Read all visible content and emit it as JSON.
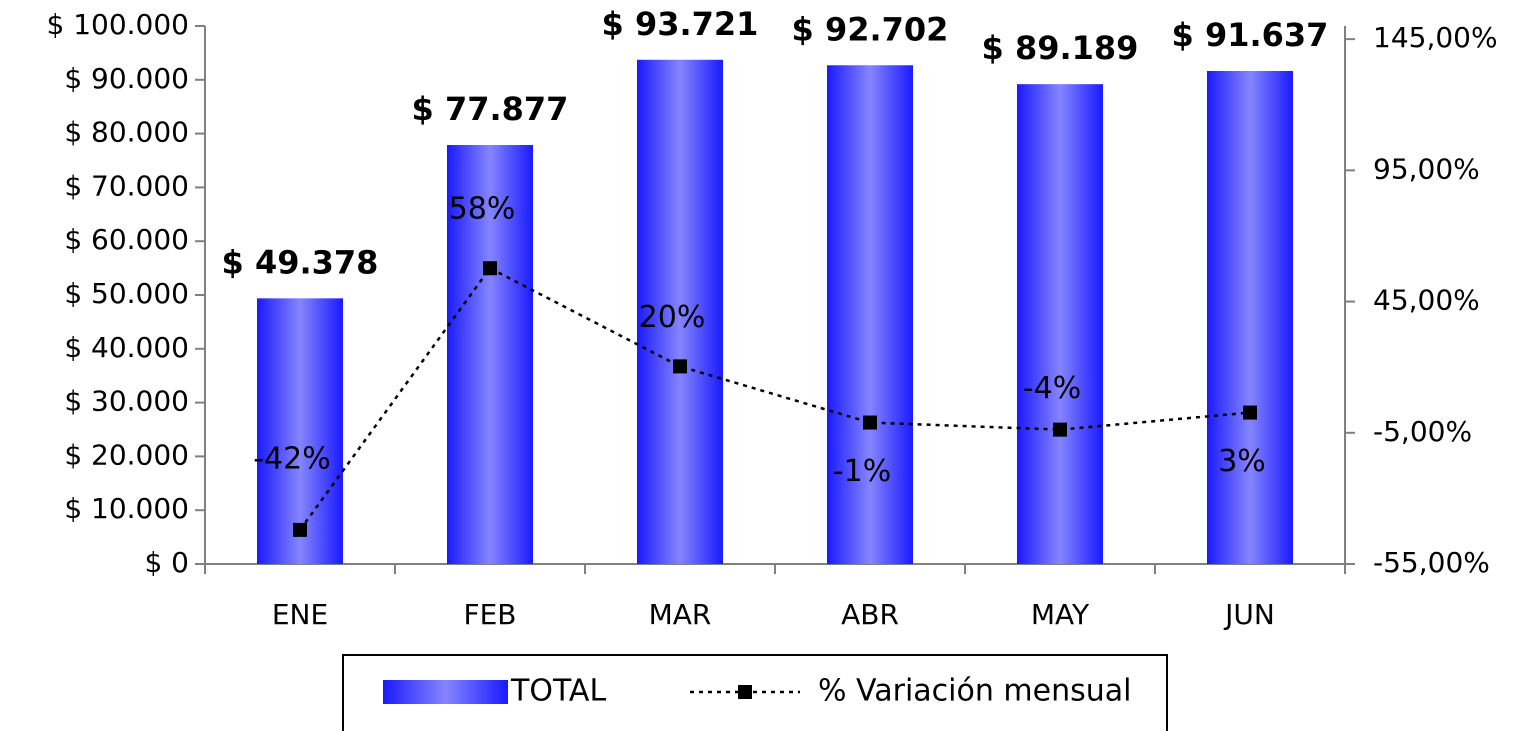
{
  "chart_data": {
    "type": "bar",
    "categories": [
      "ENE",
      "FEB",
      "MAR",
      "ABR",
      "MAY",
      "JUN"
    ],
    "series": [
      {
        "name": "TOTAL",
        "color": "#2020ff",
        "values": [
          49378,
          77877,
          93721,
          92702,
          89189,
          91637
        ],
        "value_labels": [
          "$ 49.378",
          "$ 77.877",
          "$ 93.721",
          "$ 92.702",
          "$ 89.189",
          "$ 91.637"
        ]
      },
      {
        "name": "% Variación mensual",
        "color": "#000000",
        "axis": "y2",
        "values": [
          -42,
          57.7,
          20.3,
          -1.1,
          -3.8,
          2.7
        ],
        "value_labels": [
          "-42%",
          "58%",
          "20%",
          "-1%",
          "-4%",
          "3%"
        ]
      }
    ],
    "ylim": [
      0,
      100000
    ],
    "yticks": [
      {
        "value": 0,
        "label": "$ 0"
      },
      {
        "value": 10000,
        "label": "$ 10.000"
      },
      {
        "value": 20000,
        "label": "$ 20.000"
      },
      {
        "value": 30000,
        "label": "$ 30.000"
      },
      {
        "value": 40000,
        "label": "$ 40.000"
      },
      {
        "value": 50000,
        "label": "$ 50.000"
      },
      {
        "value": 60000,
        "label": "$ 60.000"
      },
      {
        "value": 70000,
        "label": "$ 70.000"
      },
      {
        "value": 80000,
        "label": "$ 80.000"
      },
      {
        "value": 90000,
        "label": "$ 90.000"
      },
      {
        "value": 100000,
        "label": "$ 100.000"
      }
    ],
    "y2lim": [
      -55,
      150
    ],
    "y2ticks": [
      {
        "value": -55,
        "label": "-55,00%"
      },
      {
        "value": -5,
        "label": "-5,00%"
      },
      {
        "value": 45,
        "label": "45,00%"
      },
      {
        "value": 95,
        "label": "95,00%"
      },
      {
        "value": 145,
        "label": "145,00%"
      }
    ],
    "legend": "bottom",
    "grid": false
  }
}
